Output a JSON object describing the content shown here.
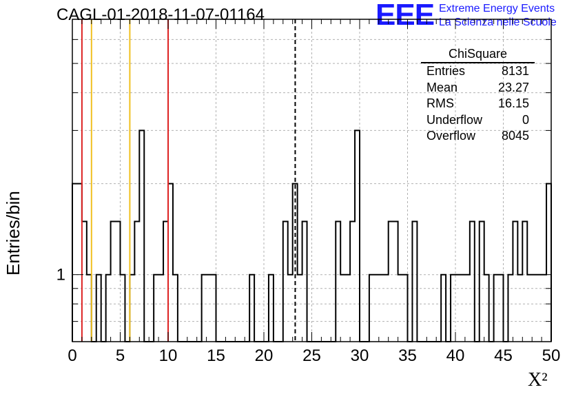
{
  "chart_data": {
    "type": "histogram",
    "title": "CAGL-01-2018-11-07-01164",
    "xlabel": "X²",
    "ylabel": "Entries/bin",
    "xlim": [
      0,
      50
    ],
    "ylim": [
      0.6,
      7
    ],
    "yscale": "log",
    "grid": true,
    "xticks": [
      0,
      5,
      10,
      15,
      20,
      25,
      30,
      35,
      40,
      45,
      50
    ],
    "yticks": [
      1
    ],
    "bin_width": 0.5,
    "bins": [
      {
        "x": 0.5,
        "y": 2
      },
      {
        "x": 1.0,
        "y": 2
      },
      {
        "x": 1.5,
        "y": 1.5
      },
      {
        "x": 2.0,
        "y": 1
      },
      {
        "x": 2.5,
        "y": 0.6
      },
      {
        "x": 3.0,
        "y": 1
      },
      {
        "x": 3.5,
        "y": 0.6
      },
      {
        "x": 4.0,
        "y": 1
      },
      {
        "x": 4.5,
        "y": 1.5
      },
      {
        "x": 5.0,
        "y": 1.5
      },
      {
        "x": 5.5,
        "y": 1
      },
      {
        "x": 6.0,
        "y": 0.6
      },
      {
        "x": 6.5,
        "y": 1
      },
      {
        "x": 7.0,
        "y": 1.5
      },
      {
        "x": 7.5,
        "y": 3
      },
      {
        "x": 8.0,
        "y": 0.6
      },
      {
        "x": 8.5,
        "y": 0.6
      },
      {
        "x": 9.0,
        "y": 1
      },
      {
        "x": 9.5,
        "y": 1
      },
      {
        "x": 10.0,
        "y": 1.5
      },
      {
        "x": 10.5,
        "y": 2
      },
      {
        "x": 11.0,
        "y": 1
      },
      {
        "x": 11.5,
        "y": 0.6
      },
      {
        "x": 12.0,
        "y": 0.6
      },
      {
        "x": 12.5,
        "y": 0.6
      },
      {
        "x": 13.0,
        "y": 0.6
      },
      {
        "x": 13.5,
        "y": 0.6
      },
      {
        "x": 14.0,
        "y": 1
      },
      {
        "x": 14.5,
        "y": 1
      },
      {
        "x": 15.0,
        "y": 1
      },
      {
        "x": 15.5,
        "y": 0.6
      },
      {
        "x": 16.0,
        "y": 0.6
      },
      {
        "x": 16.5,
        "y": 0.6
      },
      {
        "x": 17.0,
        "y": 0.6
      },
      {
        "x": 17.5,
        "y": 0.6
      },
      {
        "x": 18.0,
        "y": 0.6
      },
      {
        "x": 18.5,
        "y": 0.6
      },
      {
        "x": 19.0,
        "y": 1
      },
      {
        "x": 19.5,
        "y": 0.6
      },
      {
        "x": 20.0,
        "y": 0.6
      },
      {
        "x": 20.5,
        "y": 0.6
      },
      {
        "x": 21.0,
        "y": 1
      },
      {
        "x": 21.5,
        "y": 0.6
      },
      {
        "x": 22.0,
        "y": 0.6
      },
      {
        "x": 22.5,
        "y": 1.5
      },
      {
        "x": 23.0,
        "y": 1
      },
      {
        "x": 23.5,
        "y": 2
      },
      {
        "x": 24.0,
        "y": 1
      },
      {
        "x": 24.5,
        "y": 1.5
      },
      {
        "x": 25.0,
        "y": 0.6
      },
      {
        "x": 25.5,
        "y": 0.6
      },
      {
        "x": 26.0,
        "y": 0.6
      },
      {
        "x": 26.5,
        "y": 0.6
      },
      {
        "x": 27.0,
        "y": 0.6
      },
      {
        "x": 27.5,
        "y": 0.6
      },
      {
        "x": 28.0,
        "y": 1.5
      },
      {
        "x": 28.5,
        "y": 1
      },
      {
        "x": 29.0,
        "y": 1
      },
      {
        "x": 29.5,
        "y": 1.5
      },
      {
        "x": 30.0,
        "y": 3
      },
      {
        "x": 30.5,
        "y": 0.6
      },
      {
        "x": 31.0,
        "y": 0.6
      },
      {
        "x": 31.5,
        "y": 1
      },
      {
        "x": 32.0,
        "y": 1
      },
      {
        "x": 32.5,
        "y": 1
      },
      {
        "x": 33.0,
        "y": 1
      },
      {
        "x": 33.5,
        "y": 1.5
      },
      {
        "x": 34.0,
        "y": 1.5
      },
      {
        "x": 34.5,
        "y": 1
      },
      {
        "x": 35.0,
        "y": 1
      },
      {
        "x": 35.5,
        "y": 0.6
      },
      {
        "x": 36.0,
        "y": 1.5
      },
      {
        "x": 36.5,
        "y": 0.6
      },
      {
        "x": 37.0,
        "y": 0.6
      },
      {
        "x": 37.5,
        "y": 0.6
      },
      {
        "x": 38.0,
        "y": 0.6
      },
      {
        "x": 38.5,
        "y": 0.6
      },
      {
        "x": 39.0,
        "y": 1
      },
      {
        "x": 39.5,
        "y": 0.6
      },
      {
        "x": 40.0,
        "y": 1
      },
      {
        "x": 40.5,
        "y": 1
      },
      {
        "x": 41.0,
        "y": 1
      },
      {
        "x": 41.5,
        "y": 1
      },
      {
        "x": 42.0,
        "y": 1.5
      },
      {
        "x": 42.5,
        "y": 0.6
      },
      {
        "x": 43.0,
        "y": 1.5
      },
      {
        "x": 43.5,
        "y": 1
      },
      {
        "x": 44.0,
        "y": 0.6
      },
      {
        "x": 44.5,
        "y": 1
      },
      {
        "x": 45.0,
        "y": 1
      },
      {
        "x": 45.5,
        "y": 0.6
      },
      {
        "x": 46.0,
        "y": 1
      },
      {
        "x": 46.5,
        "y": 1.5
      },
      {
        "x": 47.0,
        "y": 1
      },
      {
        "x": 47.5,
        "y": 1.5
      },
      {
        "x": 48.0,
        "y": 1
      },
      {
        "x": 48.5,
        "y": 1
      },
      {
        "x": 49.0,
        "y": 1
      },
      {
        "x": 49.5,
        "y": 1
      },
      {
        "x": 50.0,
        "y": 2
      }
    ],
    "vlines": [
      {
        "x": 1.0,
        "color": "#dd2222",
        "style": "solid"
      },
      {
        "x": 2.0,
        "color": "#f0c020",
        "style": "solid"
      },
      {
        "x": 6.0,
        "color": "#f0c020",
        "style": "solid"
      },
      {
        "x": 10.0,
        "color": "#dd2222",
        "style": "solid"
      },
      {
        "x": 23.27,
        "color": "#000000",
        "style": "dashed"
      }
    ],
    "stats": {
      "title": "ChiSquare",
      "rows": [
        {
          "label": "Entries",
          "value": "8131"
        },
        {
          "label": "Mean",
          "value": "23.27"
        },
        {
          "label": "RMS",
          "value": "16.15"
        },
        {
          "label": "Underflow",
          "value": "0"
        },
        {
          "label": "Overflow",
          "value": "8045"
        }
      ]
    }
  },
  "logo": {
    "mark": "EEE",
    "line1": "Extreme Energy Events",
    "line2": "La Scienza nelle Scuole",
    "color": "#1a1aff"
  }
}
